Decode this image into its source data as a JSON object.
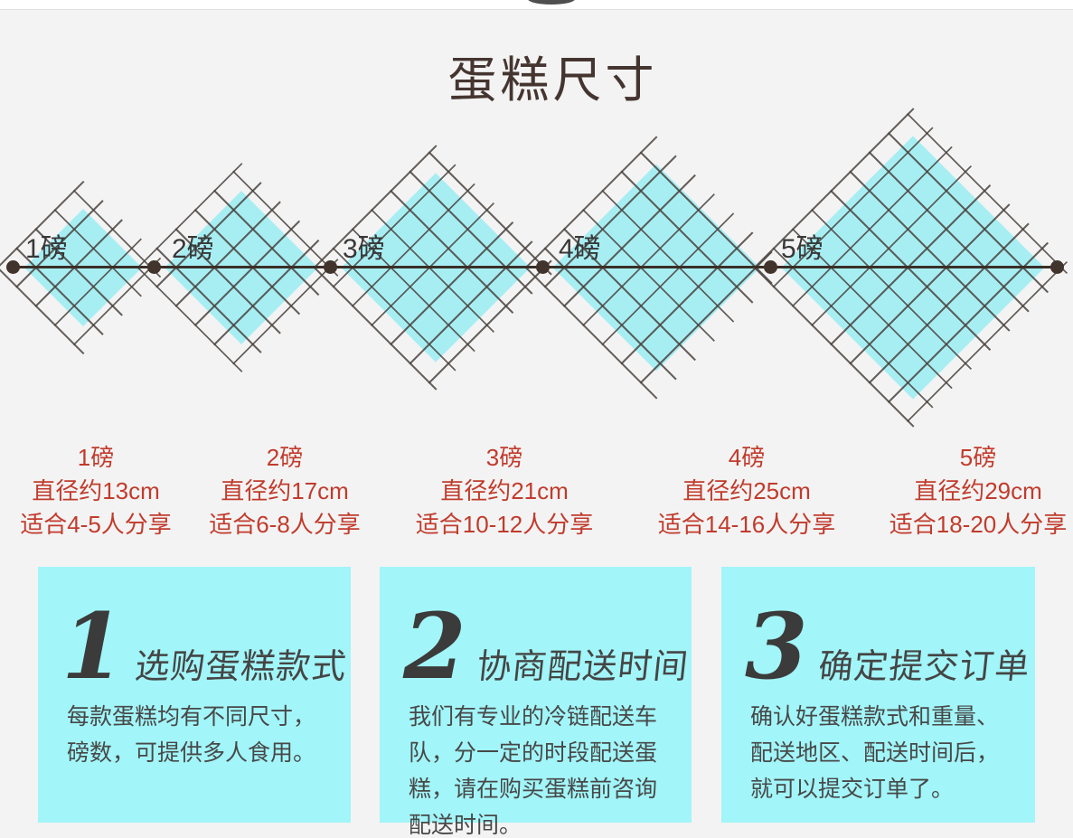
{
  "page": {
    "title": "蛋糕尺寸"
  },
  "size_chart": {
    "axis_labels": [
      "1磅",
      "2磅",
      "3磅",
      "4磅",
      "5磅"
    ],
    "items": [
      {
        "pound": "1磅",
        "diameter": "直径约13cm",
        "serving": "适合4-5人分享"
      },
      {
        "pound": "2磅",
        "diameter": "直径约17cm",
        "serving": "适合6-8人分享"
      },
      {
        "pound": "3磅",
        "diameter": "直径约21cm",
        "serving": "适合10-12人分享"
      },
      {
        "pound": "4磅",
        "diameter": "直径约25cm",
        "serving": "适合14-16人分享"
      },
      {
        "pound": "5磅",
        "diameter": "直径约29cm",
        "serving": "适合18-20人分享"
      }
    ]
  },
  "steps": [
    {
      "number": "1",
      "title": "选购蛋糕款式",
      "description": "每款蛋糕均有不同尺寸，磅数，可提供多人食用。"
    },
    {
      "number": "2",
      "title": "协商配送时间",
      "description": "我们有专业的冷链配送车队，分一定的时段配送蛋糕，请在购买蛋糕前咨询配送时间。"
    },
    {
      "number": "3",
      "title": "确定提交订单",
      "description": "确认好蛋糕款式和重量、配送地区、配送时间后，就可以提交订单了。"
    }
  ],
  "colors": {
    "background": "#f3f3f3",
    "diamond_fill": "#a7eef3",
    "crosshatch_line": "#48413c",
    "axis_line": "#3a2f28",
    "box_fill": "#a2f5f8",
    "accent_red": "#c13b2c",
    "title_brown": "#453530",
    "text_dark": "#484848"
  }
}
